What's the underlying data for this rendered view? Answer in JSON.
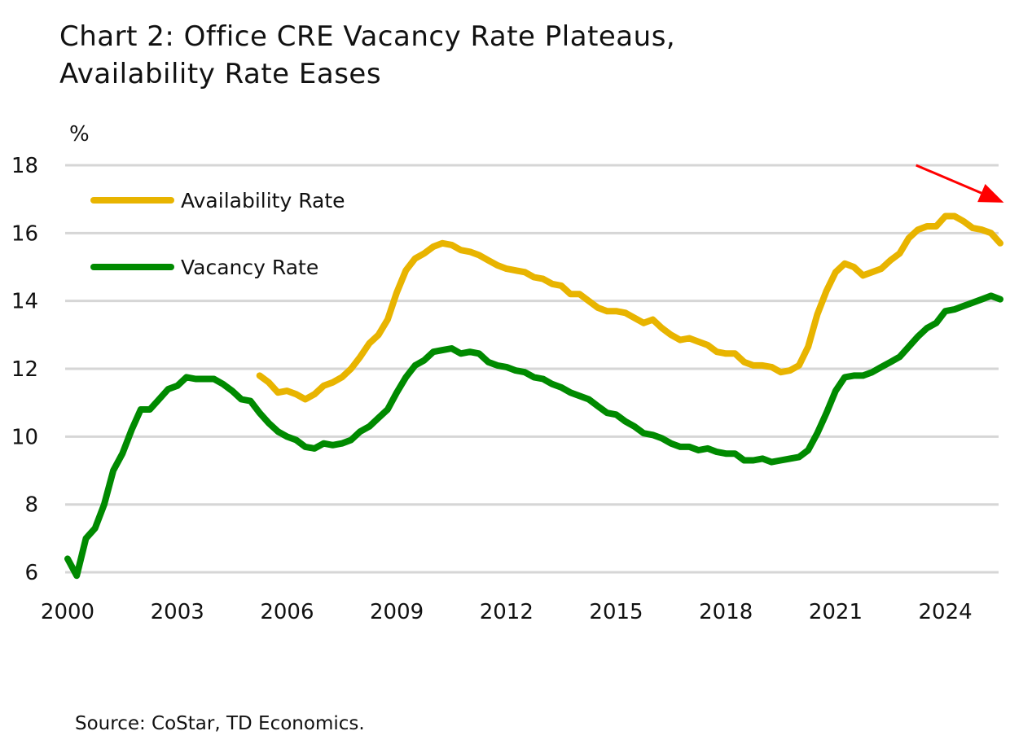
{
  "chart_data": {
    "type": "line",
    "title": "Chart 2: Office CRE Vacancy Rate Plateaus, Availability Rate Eases",
    "title_lines": [
      "Chart 2: Office CRE Vacancy Rate Plateaus,",
      "Availability Rate Eases"
    ],
    "ylabel": "%",
    "xlabel": "",
    "ylim": [
      6,
      18
    ],
    "yticks": [
      6,
      8,
      10,
      12,
      14,
      16,
      18
    ],
    "xlim": [
      2000,
      2025.6
    ],
    "xticks": [
      2000,
      2003,
      2006,
      2009,
      2012,
      2015,
      2018,
      2021,
      2024
    ],
    "grid": true,
    "legend_placement": "top-left",
    "frequency": "quarterly",
    "series": [
      {
        "name": "Availability Rate",
        "color": "#E8B400",
        "start": "2005Q2",
        "values": [
          11.8,
          11.6,
          11.3,
          11.35,
          11.25,
          11.1,
          11.25,
          11.5,
          11.6,
          11.75,
          12.0,
          12.35,
          12.75,
          13.0,
          13.45,
          14.25,
          14.9,
          15.25,
          15.4,
          15.6,
          15.7,
          15.65,
          15.5,
          15.45,
          15.35,
          15.2,
          15.05,
          14.95,
          14.9,
          14.85,
          14.7,
          14.65,
          14.5,
          14.45,
          14.2,
          14.2,
          14.0,
          13.8,
          13.7,
          13.7,
          13.65,
          13.5,
          13.35,
          13.45,
          13.2,
          13.0,
          12.85,
          12.9,
          12.8,
          12.7,
          12.5,
          12.45,
          12.45,
          12.2,
          12.1,
          12.1,
          12.05,
          11.9,
          11.95,
          12.1,
          12.65,
          13.6,
          14.3,
          14.85,
          15.1,
          15.0,
          14.75,
          14.85,
          14.95,
          15.2,
          15.4,
          15.85,
          16.1,
          16.2,
          16.2,
          16.5,
          16.5,
          16.35,
          16.15,
          16.1,
          16.0,
          15.7
        ]
      },
      {
        "name": "Vacancy Rate",
        "color": "#008A00",
        "start": "2000Q1",
        "values": [
          6.4,
          5.9,
          7.0,
          7.3,
          8.0,
          9.0,
          9.5,
          10.2,
          10.8,
          10.8,
          11.1,
          11.4,
          11.5,
          11.75,
          11.7,
          11.7,
          11.7,
          11.55,
          11.35,
          11.1,
          11.05,
          10.7,
          10.4,
          10.15,
          10.0,
          9.9,
          9.7,
          9.65,
          9.8,
          9.75,
          9.8,
          9.9,
          10.15,
          10.3,
          10.55,
          10.8,
          11.3,
          11.75,
          12.1,
          12.25,
          12.5,
          12.55,
          12.6,
          12.45,
          12.5,
          12.45,
          12.2,
          12.1,
          12.05,
          11.95,
          11.9,
          11.75,
          11.7,
          11.55,
          11.45,
          11.3,
          11.2,
          11.1,
          10.9,
          10.7,
          10.65,
          10.45,
          10.3,
          10.1,
          10.05,
          9.95,
          9.8,
          9.7,
          9.7,
          9.6,
          9.65,
          9.55,
          9.5,
          9.5,
          9.3,
          9.3,
          9.35,
          9.25,
          9.3,
          9.35,
          9.4,
          9.6,
          10.1,
          10.7,
          11.35,
          11.75,
          11.8,
          11.8,
          11.9,
          12.05,
          12.2,
          12.35,
          12.65,
          12.95,
          13.2,
          13.35,
          13.7,
          13.75,
          13.85,
          13.95,
          14.05,
          14.15,
          14.05
        ]
      }
    ],
    "annotations": [
      {
        "type": "arrow",
        "color": "#FF0000",
        "direction": "down-right",
        "from": [
          2023.2,
          18
        ],
        "to": [
          2025.6,
          16.9
        ]
      }
    ],
    "source": "Source: CoStar, TD Economics."
  }
}
